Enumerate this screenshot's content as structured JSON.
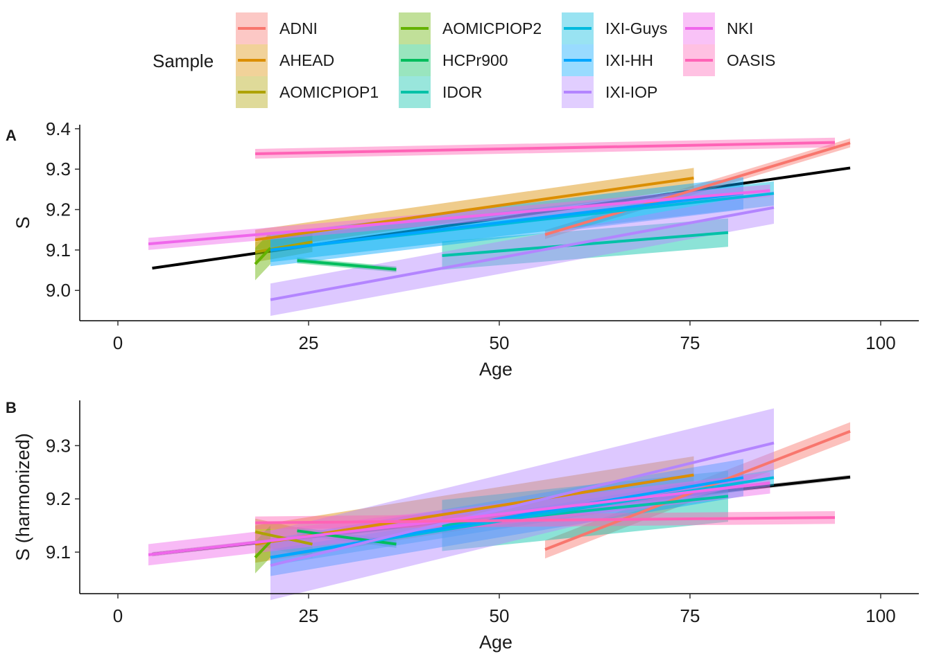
{
  "legend": {
    "title": "Sample",
    "position": "top",
    "entries": [
      {
        "name": "ADNI",
        "color": "#F8766D"
      },
      {
        "name": "AHEAD",
        "color": "#DB8E00"
      },
      {
        "name": "AOMICPIOP1",
        "color": "#AEA200"
      },
      {
        "name": "AOMICPIOP2",
        "color": "#64B200"
      },
      {
        "name": "HCPr900",
        "color": "#00BD5C"
      },
      {
        "name": "IDOR",
        "color": "#00C1A7"
      },
      {
        "name": "IXI-Guys",
        "color": "#00BADE"
      },
      {
        "name": "IXI-HH",
        "color": "#00A6FF"
      },
      {
        "name": "IXI-IOP",
        "color": "#B385FF"
      },
      {
        "name": "NKI",
        "color": "#EF67EB"
      },
      {
        "name": "OASIS",
        "color": "#FF63B6"
      }
    ]
  },
  "chart_data": [
    {
      "type": "line",
      "panel_tag": "A",
      "xlabel": "Age",
      "ylabel": "S",
      "xlim": [
        -5,
        105
      ],
      "ylim": [
        8.925,
        9.41
      ],
      "xticks": [
        0,
        25,
        50,
        75,
        100
      ],
      "yticks": [
        9.0,
        9.1,
        9.2,
        9.3,
        9.4
      ],
      "ytick_labels": [
        "9.0",
        "9.1",
        "9.2",
        "9.3",
        "9.4"
      ],
      "grid": false,
      "overall": {
        "color": "#000000",
        "x": [
          4.5,
          96
        ],
        "y": [
          9.055,
          9.303
        ],
        "band": 0.003
      },
      "series": [
        {
          "name": "ADNI",
          "x": [
            56,
            96
          ],
          "y": [
            9.138,
            9.365
          ],
          "band": 0.011
        },
        {
          "name": "AHEAD",
          "x": [
            18,
            75.5
          ],
          "y": [
            9.125,
            9.278
          ],
          "band": 0.025
        },
        {
          "name": "AOMICPIOP1",
          "x": [
            18,
            25.5
          ],
          "y": [
            9.095,
            9.12
          ],
          "band": 0.025
        },
        {
          "name": "AOMICPIOP2",
          "x": [
            18,
            20
          ],
          "y": [
            9.065,
            9.105
          ],
          "band": 0.04
        },
        {
          "name": "HCPr900",
          "x": [
            23.5,
            36.5
          ],
          "y": [
            9.074,
            9.052
          ],
          "band": 0.007
        },
        {
          "name": "IDOR",
          "x": [
            42.5,
            80
          ],
          "y": [
            9.086,
            9.143
          ],
          "band": 0.035
        },
        {
          "name": "IXI-Guys",
          "x": [
            20,
            86
          ],
          "y": [
            9.1,
            9.24
          ],
          "band": 0.03
        },
        {
          "name": "IXI-HH",
          "x": [
            20,
            82
          ],
          "y": [
            9.1,
            9.24
          ],
          "band": 0.04
        },
        {
          "name": "IXI-IOP",
          "x": [
            20,
            86
          ],
          "y": [
            8.977,
            9.205
          ],
          "band": 0.04
        },
        {
          "name": "NKI",
          "x": [
            4,
            85.5
          ],
          "y": [
            9.115,
            9.247
          ],
          "band": 0.015
        },
        {
          "name": "OASIS",
          "x": [
            18,
            94
          ],
          "y": [
            9.338,
            9.366
          ],
          "band": 0.012
        }
      ]
    },
    {
      "type": "line",
      "panel_tag": "B",
      "xlabel": "Age",
      "ylabel": "S (harmonized)",
      "xlim": [
        -5,
        105
      ],
      "ylim": [
        9.022,
        9.385
      ],
      "xticks": [
        0,
        25,
        50,
        75,
        100
      ],
      "yticks": [
        9.1,
        9.2,
        9.3
      ],
      "ytick_labels": [
        "9.1",
        "9.2",
        "9.3"
      ],
      "grid": false,
      "overall": {
        "color": "#000000",
        "x": [
          4.5,
          96
        ],
        "y": [
          9.096,
          9.241
        ],
        "band": 0.004
      },
      "series": [
        {
          "name": "ADNI",
          "x": [
            56,
            96
          ],
          "y": [
            9.105,
            9.327
          ],
          "band": 0.017
        },
        {
          "name": "AHEAD",
          "x": [
            18,
            75.5
          ],
          "y": [
            9.115,
            9.245
          ],
          "band": 0.035
        },
        {
          "name": "AOMICPIOP1",
          "x": [
            18,
            25.5
          ],
          "y": [
            9.138,
            9.115
          ],
          "band": 0.025
        },
        {
          "name": "AOMICPIOP2",
          "x": [
            18,
            20
          ],
          "y": [
            9.09,
            9.12
          ],
          "band": 0.03
        },
        {
          "name": "HCPr900",
          "x": [
            23.5,
            36.5
          ],
          "y": [
            9.14,
            9.115
          ],
          "band": 0.007
        },
        {
          "name": "IDOR",
          "x": [
            42.5,
            80
          ],
          "y": [
            9.15,
            9.205
          ],
          "band": 0.048
        },
        {
          "name": "IXI-Guys",
          "x": [
            20,
            86
          ],
          "y": [
            9.09,
            9.24
          ],
          "band": 0.015
        },
        {
          "name": "IXI-HH",
          "x": [
            20,
            82
          ],
          "y": [
            9.09,
            9.24
          ],
          "band": 0.035
        },
        {
          "name": "IXI-IOP",
          "x": [
            20,
            86
          ],
          "y": [
            9.075,
            9.305
          ],
          "band": 0.065
        },
        {
          "name": "NKI",
          "x": [
            4,
            85.5
          ],
          "y": [
            9.095,
            9.23
          ],
          "band": 0.02
        },
        {
          "name": "OASIS",
          "x": [
            18,
            94
          ],
          "y": [
            9.155,
            9.165
          ],
          "band": 0.012
        }
      ]
    }
  ]
}
